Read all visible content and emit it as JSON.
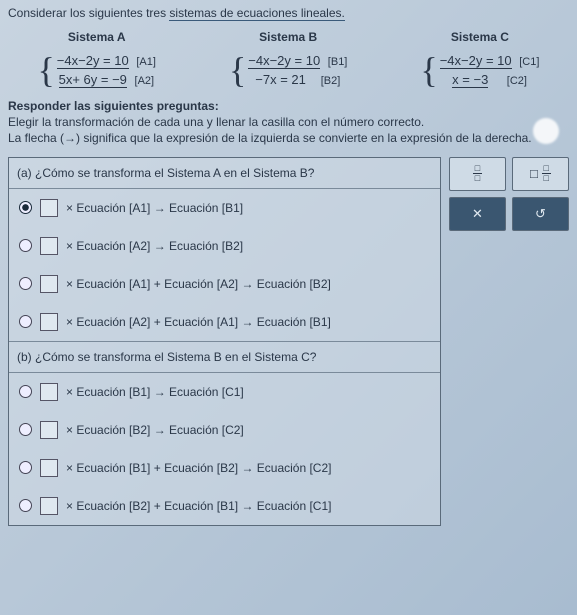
{
  "title_prefix": "Considerar los siguientes tres ",
  "title_ul": "sistemas de ecuaciones lineales.",
  "systems": {
    "A": {
      "head": "Sistema A",
      "eq1": "−4x−2y = 10",
      "tag1": "[A1]",
      "eq2": "5x+ 6y = −9",
      "tag2": "[A2]"
    },
    "B": {
      "head": "Sistema B",
      "eq1": "−4x−2y = 10",
      "tag1": "[B1]",
      "eq2": "−7x = 21",
      "tag2": "[B2]"
    },
    "C": {
      "head": "Sistema C",
      "eq1": "−4x−2y = 10",
      "tag1": "[C1]",
      "eq2": "x = −3",
      "tag2": "[C2]"
    }
  },
  "sub1": "Responder las siguientes preguntas:",
  "sub2": "Elegir la transformación de cada una y llenar la casilla con el número correcto.",
  "sub3_a": "La flecha (→) significa que la expresión de la izquierda se convierte en la expresión de la derecha.",
  "qa_head": "(a)  ¿Cómo se transforma el Sistema A en el Sistema B?",
  "qa_opts": [
    "× Ecuación [A1]  →  Ecuación [B1]",
    "× Ecuación [A2]  →  Ecuación [B2]",
    "× Ecuación [A1] + Ecuación [A2]  →  Ecuación [B2]",
    "× Ecuación [A2] + Ecuación [A1]  →  Ecuación [B1]"
  ],
  "qb_head": "(b)  ¿Cómo se transforma el Sistema B en el Sistema C?",
  "qb_opts": [
    "× Ecuación [B1]  →  Ecuación [C1]",
    "× Ecuación [B2]  →  Ecuación [C2]",
    "× Ecuación [B1] + Ecuación [B2]  →  Ecuación [C2]",
    "× Ecuación [B2] + Ecuación [B1]  →  Ecuación [C1]"
  ],
  "tool_x": "✕",
  "tool_undo": "↺"
}
